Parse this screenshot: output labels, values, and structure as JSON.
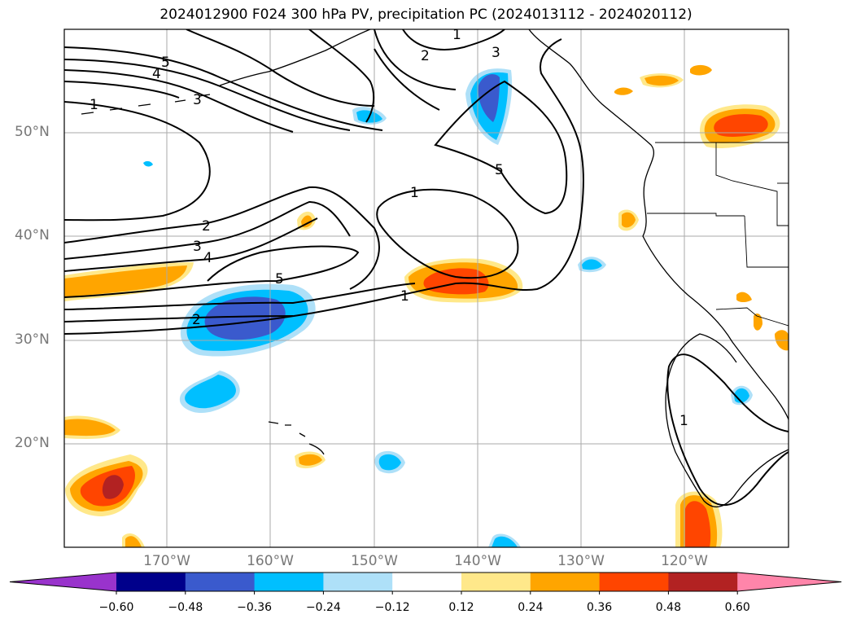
{
  "title": "2024012900 F024 300 hPa PV, precipitation PC (2024013112 - 2024020112)",
  "map": {
    "lat_labels": [
      "50°N",
      "40°N",
      "30°N",
      "20°N"
    ],
    "lon_labels": [
      "170°W",
      "160°W",
      "150°W",
      "140°W",
      "130°W",
      "120°W"
    ],
    "pv_contour_labels": [
      "1",
      "2",
      "3",
      "4",
      "5"
    ]
  },
  "colorbar": {
    "tick_labels": [
      "−0.60",
      "−0.48",
      "−0.36",
      "−0.24",
      "−0.12",
      "0.12",
      "0.24",
      "0.36",
      "0.48",
      "0.60"
    ],
    "colors": [
      "#9933cc",
      "#00008b",
      "#3a5acd",
      "#00bfff",
      "#aee0f8",
      "#ffffff",
      "#ffe88a",
      "#ffa500",
      "#ff4500",
      "#b22222",
      "#ff85aa"
    ]
  }
}
